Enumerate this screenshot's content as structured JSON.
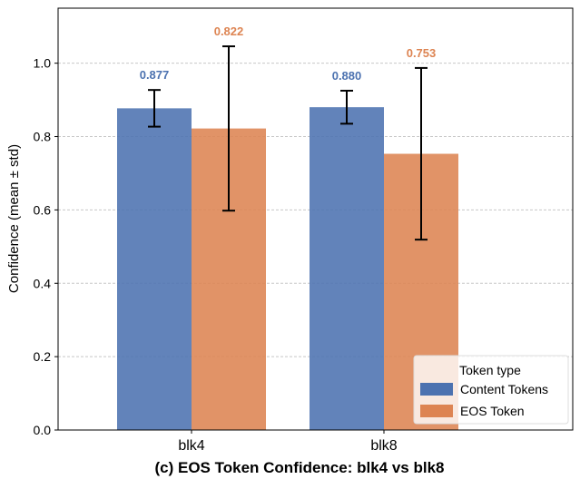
{
  "chart_data": {
    "type": "bar",
    "title": "(c) EOS Token Confidence: blk4 vs blk8",
    "xlabel": "",
    "ylabel": "Confidence (mean ± std)",
    "categories": [
      "blk4",
      "blk8"
    ],
    "ylim": [
      0,
      1.15
    ],
    "yticks": [
      "0.0",
      "0.2",
      "0.4",
      "0.6",
      "0.8",
      "1.0"
    ],
    "grid": "y, dashed",
    "legend": {
      "title": "Token type",
      "placement": "bottom-right"
    },
    "series": [
      {
        "name": "Content Tokens",
        "color": "#4c72b0",
        "values": [
          0.877,
          0.88
        ],
        "std": [
          0.05,
          0.045
        ],
        "labels": [
          "0.877",
          "0.880"
        ]
      },
      {
        "name": "EOS Token",
        "color": "#dd8452",
        "values": [
          0.822,
          0.753
        ],
        "std": [
          0.224,
          0.234
        ],
        "labels": [
          "0.822",
          "0.753"
        ]
      }
    ]
  }
}
